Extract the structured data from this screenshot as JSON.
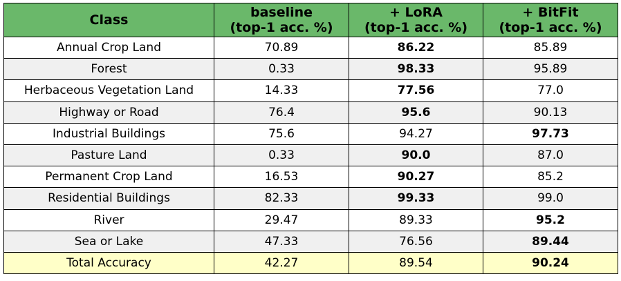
{
  "chart_data": {
    "type": "table",
    "columns": [
      "Class",
      "baseline\n(top-1 acc. %)",
      "+ LoRA\n(top-1 acc. %)",
      "+ BitFit\n(top-1 acc. %)"
    ],
    "rows": [
      {
        "cells": [
          "Annual Crop Land",
          "70.89",
          "86.22",
          "85.89"
        ],
        "best": 2
      },
      {
        "cells": [
          "Forest",
          "0.33",
          "98.33",
          "95.89"
        ],
        "best": 2
      },
      {
        "cells": [
          "Herbaceous Vegetation Land",
          "14.33",
          "77.56",
          "77.0"
        ],
        "best": 2
      },
      {
        "cells": [
          "Highway or Road",
          "76.4",
          "95.6",
          "90.13"
        ],
        "best": 2
      },
      {
        "cells": [
          "Industrial Buildings",
          "75.6",
          "94.27",
          "97.73"
        ],
        "best": 3
      },
      {
        "cells": [
          "Pasture Land",
          "0.33",
          "90.0",
          "87.0"
        ],
        "best": 2
      },
      {
        "cells": [
          "Permanent Crop Land",
          "16.53",
          "90.27",
          "85.2"
        ],
        "best": 2
      },
      {
        "cells": [
          "Residential Buildings",
          "82.33",
          "99.33",
          "99.0"
        ],
        "best": 2
      },
      {
        "cells": [
          "River",
          "29.47",
          "89.33",
          "95.2"
        ],
        "best": 3
      },
      {
        "cells": [
          "Sea or Lake",
          "47.33",
          "76.56",
          "89.44"
        ],
        "best": 3
      },
      {
        "cells": [
          "Total Accuracy",
          "42.27",
          "89.54",
          "90.24"
        ],
        "best": 3,
        "total": true
      }
    ],
    "colors": {
      "header": "#6ab86a",
      "row_alt": "#f0f0f0",
      "total_row": "#ffffc8"
    }
  }
}
